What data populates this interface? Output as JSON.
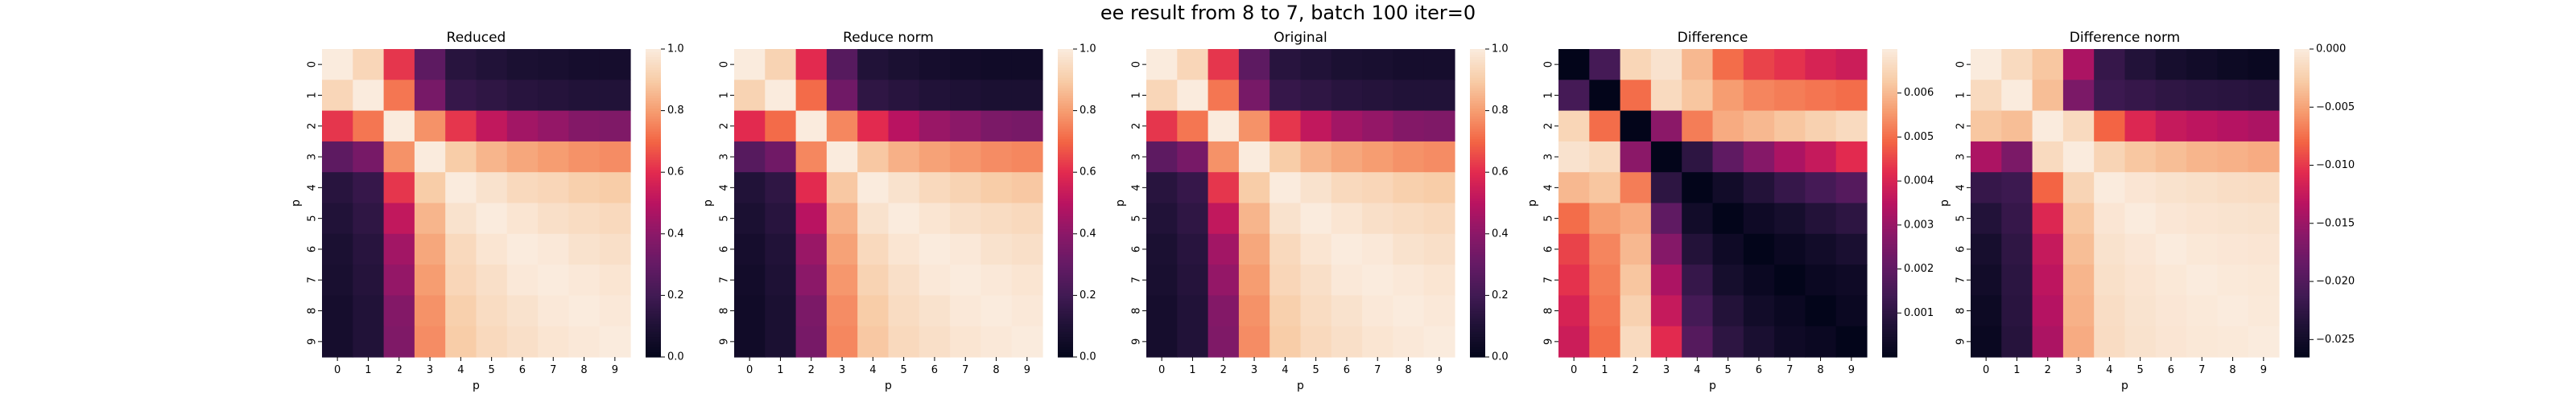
{
  "figure_title": "ee result from 8 to 7, batch 100 iter=0",
  "chart_data": [
    {
      "type": "heatmap",
      "title": "Reduced",
      "xlabel": "p",
      "ylabel": "p",
      "x_ticks": [
        "0",
        "1",
        "2",
        "3",
        "4",
        "5",
        "6",
        "7",
        "8",
        "9"
      ],
      "y_ticks": [
        "0",
        "1",
        "2",
        "3",
        "4",
        "5",
        "6",
        "7",
        "8",
        "9"
      ],
      "colormap": "rocket",
      "vmin": 0.0,
      "vmax": 1.0,
      "colorbar_ticks": [
        "0.0",
        "0.2",
        "0.4",
        "0.6",
        "0.8",
        "1.0"
      ],
      "colorbar_tick_values": [
        0.0,
        0.2,
        0.4,
        0.6,
        0.8,
        1.0
      ],
      "values": [
        [
          1.0,
          0.93,
          0.62,
          0.28,
          0.13,
          0.11,
          0.09,
          0.08,
          0.07,
          0.07
        ],
        [
          0.93,
          1.0,
          0.73,
          0.35,
          0.17,
          0.15,
          0.13,
          0.12,
          0.11,
          0.11
        ],
        [
          0.62,
          0.73,
          1.0,
          0.78,
          0.62,
          0.52,
          0.45,
          0.42,
          0.38,
          0.37
        ],
        [
          0.28,
          0.35,
          0.78,
          1.0,
          0.9,
          0.85,
          0.82,
          0.8,
          0.78,
          0.77
        ],
        [
          0.13,
          0.17,
          0.62,
          0.9,
          1.0,
          0.97,
          0.94,
          0.93,
          0.91,
          0.9
        ],
        [
          0.11,
          0.15,
          0.52,
          0.85,
          0.97,
          1.0,
          0.98,
          0.96,
          0.95,
          0.94
        ],
        [
          0.09,
          0.13,
          0.45,
          0.82,
          0.94,
          0.98,
          1.0,
          0.99,
          0.97,
          0.96
        ],
        [
          0.08,
          0.12,
          0.42,
          0.8,
          0.93,
          0.96,
          0.99,
          1.0,
          0.99,
          0.98
        ],
        [
          0.07,
          0.11,
          0.38,
          0.78,
          0.91,
          0.95,
          0.97,
          0.99,
          1.0,
          0.99
        ],
        [
          0.07,
          0.11,
          0.37,
          0.77,
          0.9,
          0.94,
          0.96,
          0.98,
          0.99,
          1.0
        ]
      ]
    },
    {
      "type": "heatmap",
      "title": "Reduce norm",
      "xlabel": "p",
      "ylabel": "p",
      "x_ticks": [
        "0",
        "1",
        "2",
        "3",
        "4",
        "5",
        "6",
        "7",
        "8",
        "9"
      ],
      "y_ticks": [
        "0",
        "1",
        "2",
        "3",
        "4",
        "5",
        "6",
        "7",
        "8",
        "9"
      ],
      "colormap": "rocket",
      "vmin": 0.0,
      "vmax": 1.0,
      "colorbar_ticks": [
        "0.0",
        "0.2",
        "0.4",
        "0.6",
        "0.8",
        "1.0"
      ],
      "colorbar_tick_values": [
        0.0,
        0.2,
        0.4,
        0.6,
        0.8,
        1.0
      ],
      "values": [
        [
          1.0,
          0.92,
          0.6,
          0.26,
          0.11,
          0.09,
          0.07,
          0.06,
          0.05,
          0.05
        ],
        [
          0.92,
          1.0,
          0.71,
          0.33,
          0.15,
          0.13,
          0.11,
          0.1,
          0.09,
          0.09
        ],
        [
          0.6,
          0.71,
          1.0,
          0.76,
          0.6,
          0.5,
          0.43,
          0.4,
          0.36,
          0.35
        ],
        [
          0.26,
          0.33,
          0.76,
          1.0,
          0.89,
          0.84,
          0.81,
          0.79,
          0.77,
          0.76
        ],
        [
          0.11,
          0.15,
          0.6,
          0.89,
          1.0,
          0.97,
          0.94,
          0.92,
          0.9,
          0.89
        ],
        [
          0.09,
          0.13,
          0.5,
          0.84,
          0.97,
          1.0,
          0.98,
          0.96,
          0.95,
          0.94
        ],
        [
          0.07,
          0.11,
          0.43,
          0.81,
          0.94,
          0.98,
          1.0,
          0.99,
          0.97,
          0.96
        ],
        [
          0.06,
          0.1,
          0.4,
          0.79,
          0.92,
          0.96,
          0.99,
          1.0,
          0.99,
          0.98
        ],
        [
          0.05,
          0.09,
          0.36,
          0.77,
          0.9,
          0.95,
          0.97,
          0.99,
          1.0,
          0.99
        ],
        [
          0.05,
          0.09,
          0.35,
          0.76,
          0.89,
          0.94,
          0.96,
          0.98,
          0.99,
          1.0
        ]
      ]
    },
    {
      "type": "heatmap",
      "title": "Original",
      "xlabel": "p",
      "ylabel": "p",
      "x_ticks": [
        "0",
        "1",
        "2",
        "3",
        "4",
        "5",
        "6",
        "7",
        "8",
        "9"
      ],
      "y_ticks": [
        "0",
        "1",
        "2",
        "3",
        "4",
        "5",
        "6",
        "7",
        "8",
        "9"
      ],
      "colormap": "rocket",
      "vmin": 0.0,
      "vmax": 1.0,
      "colorbar_ticks": [
        "0.0",
        "0.2",
        "0.4",
        "0.6",
        "0.8",
        "1.0"
      ],
      "colorbar_tick_values": [
        0.0,
        0.2,
        0.4,
        0.6,
        0.8,
        1.0
      ],
      "values": [
        [
          1.0,
          0.93,
          0.62,
          0.28,
          0.13,
          0.11,
          0.09,
          0.08,
          0.07,
          0.07
        ],
        [
          0.93,
          1.0,
          0.73,
          0.35,
          0.17,
          0.15,
          0.13,
          0.12,
          0.11,
          0.11
        ],
        [
          0.62,
          0.73,
          1.0,
          0.78,
          0.62,
          0.52,
          0.45,
          0.42,
          0.38,
          0.37
        ],
        [
          0.28,
          0.35,
          0.78,
          1.0,
          0.9,
          0.85,
          0.82,
          0.8,
          0.78,
          0.77
        ],
        [
          0.13,
          0.17,
          0.62,
          0.9,
          1.0,
          0.97,
          0.94,
          0.93,
          0.91,
          0.9
        ],
        [
          0.11,
          0.15,
          0.52,
          0.85,
          0.97,
          1.0,
          0.98,
          0.96,
          0.95,
          0.94
        ],
        [
          0.09,
          0.13,
          0.45,
          0.82,
          0.94,
          0.98,
          1.0,
          0.99,
          0.97,
          0.96
        ],
        [
          0.08,
          0.12,
          0.42,
          0.8,
          0.93,
          0.96,
          0.99,
          1.0,
          0.99,
          0.98
        ],
        [
          0.07,
          0.11,
          0.38,
          0.78,
          0.91,
          0.95,
          0.97,
          0.99,
          1.0,
          0.99
        ],
        [
          0.07,
          0.11,
          0.37,
          0.77,
          0.9,
          0.94,
          0.96,
          0.98,
          0.99,
          1.0
        ]
      ]
    },
    {
      "type": "heatmap",
      "title": "Difference",
      "xlabel": "p",
      "ylabel": "p",
      "x_ticks": [
        "0",
        "1",
        "2",
        "3",
        "4",
        "5",
        "6",
        "7",
        "8",
        "9"
      ],
      "y_ticks": [
        "0",
        "1",
        "2",
        "3",
        "4",
        "5",
        "6",
        "7",
        "8",
        "9"
      ],
      "colormap": "rocket",
      "vmin": 0.0,
      "vmax": 0.007,
      "colorbar_ticks": [
        "0.001",
        "0.002",
        "0.003",
        "0.004",
        "0.005",
        "0.006"
      ],
      "colorbar_tick_values": [
        0.001,
        0.002,
        0.003,
        0.004,
        0.005,
        0.006
      ],
      "values": [
        [
          0.0,
          0.0015,
          0.0065,
          0.0068,
          0.006,
          0.005,
          0.0045,
          0.0043,
          0.004,
          0.0038
        ],
        [
          0.0015,
          0.0,
          0.005,
          0.0066,
          0.0062,
          0.0056,
          0.0053,
          0.0052,
          0.0051,
          0.005
        ],
        [
          0.0065,
          0.005,
          0.0,
          0.0028,
          0.0052,
          0.0058,
          0.006,
          0.0062,
          0.0064,
          0.0066
        ],
        [
          0.0068,
          0.0066,
          0.0028,
          0.0,
          0.001,
          0.002,
          0.0027,
          0.0033,
          0.0037,
          0.0042
        ],
        [
          0.006,
          0.0062,
          0.0052,
          0.001,
          0.0,
          0.0004,
          0.0008,
          0.0012,
          0.0015,
          0.0018
        ],
        [
          0.005,
          0.0056,
          0.0058,
          0.002,
          0.0004,
          0.0,
          0.0003,
          0.0005,
          0.0008,
          0.001
        ],
        [
          0.0045,
          0.0053,
          0.006,
          0.0027,
          0.0008,
          0.0003,
          0.0,
          0.0002,
          0.0004,
          0.0006
        ],
        [
          0.0043,
          0.0052,
          0.0062,
          0.0033,
          0.0012,
          0.0005,
          0.0002,
          0.0,
          0.0002,
          0.0003
        ],
        [
          0.004,
          0.0051,
          0.0064,
          0.0037,
          0.0015,
          0.0008,
          0.0004,
          0.0002,
          0.0,
          0.0002
        ],
        [
          0.0038,
          0.005,
          0.0066,
          0.0042,
          0.0018,
          0.001,
          0.0006,
          0.0003,
          0.0002,
          0.0
        ]
      ]
    },
    {
      "type": "heatmap",
      "title": "Difference norm",
      "xlabel": "p",
      "ylabel": "p",
      "x_ticks": [
        "0",
        "1",
        "2",
        "3",
        "4",
        "5",
        "6",
        "7",
        "8",
        "9"
      ],
      "y_ticks": [
        "0",
        "1",
        "2",
        "3",
        "4",
        "5",
        "6",
        "7",
        "8",
        "9"
      ],
      "colormap": "rocket",
      "vmin": -0.0265,
      "vmax": 0.0,
      "colorbar_ticks": [
        "−0.025",
        "−0.020",
        "−0.015",
        "−0.010",
        "−0.005",
        "0.000"
      ],
      "colorbar_tick_values": [
        -0.025,
        -0.02,
        -0.015,
        -0.01,
        -0.005,
        0.0
      ],
      "values": [
        [
          0.0,
          -0.0015,
          -0.003,
          -0.014,
          -0.022,
          -0.0235,
          -0.0245,
          -0.025,
          -0.0255,
          -0.0258
        ],
        [
          -0.0015,
          0.0,
          -0.0035,
          -0.017,
          -0.0215,
          -0.022,
          -0.0225,
          -0.0228,
          -0.023,
          -0.0232
        ],
        [
          -0.003,
          -0.0035,
          0.0,
          -0.0015,
          -0.008,
          -0.011,
          -0.0125,
          -0.013,
          -0.0135,
          -0.014
        ],
        [
          -0.014,
          -0.017,
          -0.0015,
          0.0,
          -0.002,
          -0.003,
          -0.0035,
          -0.004,
          -0.0042,
          -0.0045
        ],
        [
          -0.022,
          -0.0215,
          -0.008,
          -0.002,
          0.0,
          -0.0005,
          -0.0008,
          -0.001,
          -0.0012,
          -0.0013
        ],
        [
          -0.0235,
          -0.022,
          -0.011,
          -0.003,
          -0.0005,
          0.0,
          -0.0004,
          -0.0006,
          -0.0007,
          -0.0008
        ],
        [
          -0.0245,
          -0.0225,
          -0.0125,
          -0.0035,
          -0.0008,
          -0.0004,
          0.0,
          -0.0003,
          -0.0004,
          -0.0005
        ],
        [
          -0.025,
          -0.0228,
          -0.013,
          -0.004,
          -0.001,
          -0.0006,
          -0.0003,
          0.0,
          -0.0002,
          -0.0003
        ],
        [
          -0.0255,
          -0.023,
          -0.0135,
          -0.0042,
          -0.0012,
          -0.0007,
          -0.0004,
          -0.0002,
          0.0,
          -0.0002
        ],
        [
          -0.0258,
          -0.0232,
          -0.014,
          -0.0045,
          -0.0013,
          -0.0008,
          -0.0005,
          -0.0003,
          -0.0002,
          0.0
        ]
      ]
    }
  ]
}
